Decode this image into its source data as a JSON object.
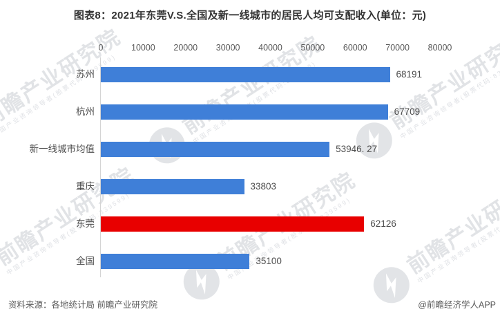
{
  "title": "图表8：2021年东莞V.S.全国及新一线城市的居民人均可支配收入(单位：元)",
  "footer": {
    "source_note": "资料来源：各地统计局 前瞻产业研究院",
    "credit": "@前瞻经济学人APP"
  },
  "watermark": {
    "big_text": "前瞻产业研究院",
    "small_text": "中国产业咨询领导者(股票代码:839599)"
  },
  "colors": {
    "bar_blue": "#3F7FD8",
    "bar_red": "#E80000",
    "axis_line": "#D4D4D4",
    "title_text": "#333333",
    "label_text": "#4D4D4D"
  },
  "chart_data": {
    "type": "bar",
    "orientation": "horizontal",
    "title": "2021年东莞V.S.全国及新一线城市的居民人均可支配收入(单位：元)",
    "categories": [
      "苏州",
      "杭州",
      "新一线城市均值",
      "重庆",
      "东莞",
      "全国"
    ],
    "values": [
      68191,
      67709,
      53946.27,
      33803,
      62126,
      35100
    ],
    "value_labels": [
      "68191",
      "67709",
      "53946. 27",
      "33803",
      "62126",
      "35100"
    ],
    "bar_colors": [
      "#3F7FD8",
      "#3F7FD8",
      "#3F7FD8",
      "#3F7FD8",
      "#E80000",
      "#3F7FD8"
    ],
    "highlight_category": "东莞",
    "xlabel": "",
    "ylabel": "",
    "xlim": [
      0,
      80000
    ],
    "x_ticks": [
      "0",
      "10000",
      "20000",
      "30000",
      "40000",
      "50000",
      "60000",
      "70000",
      "80000"
    ],
    "grid": false,
    "legend": false,
    "value_labels_position": "end-of-bar"
  }
}
